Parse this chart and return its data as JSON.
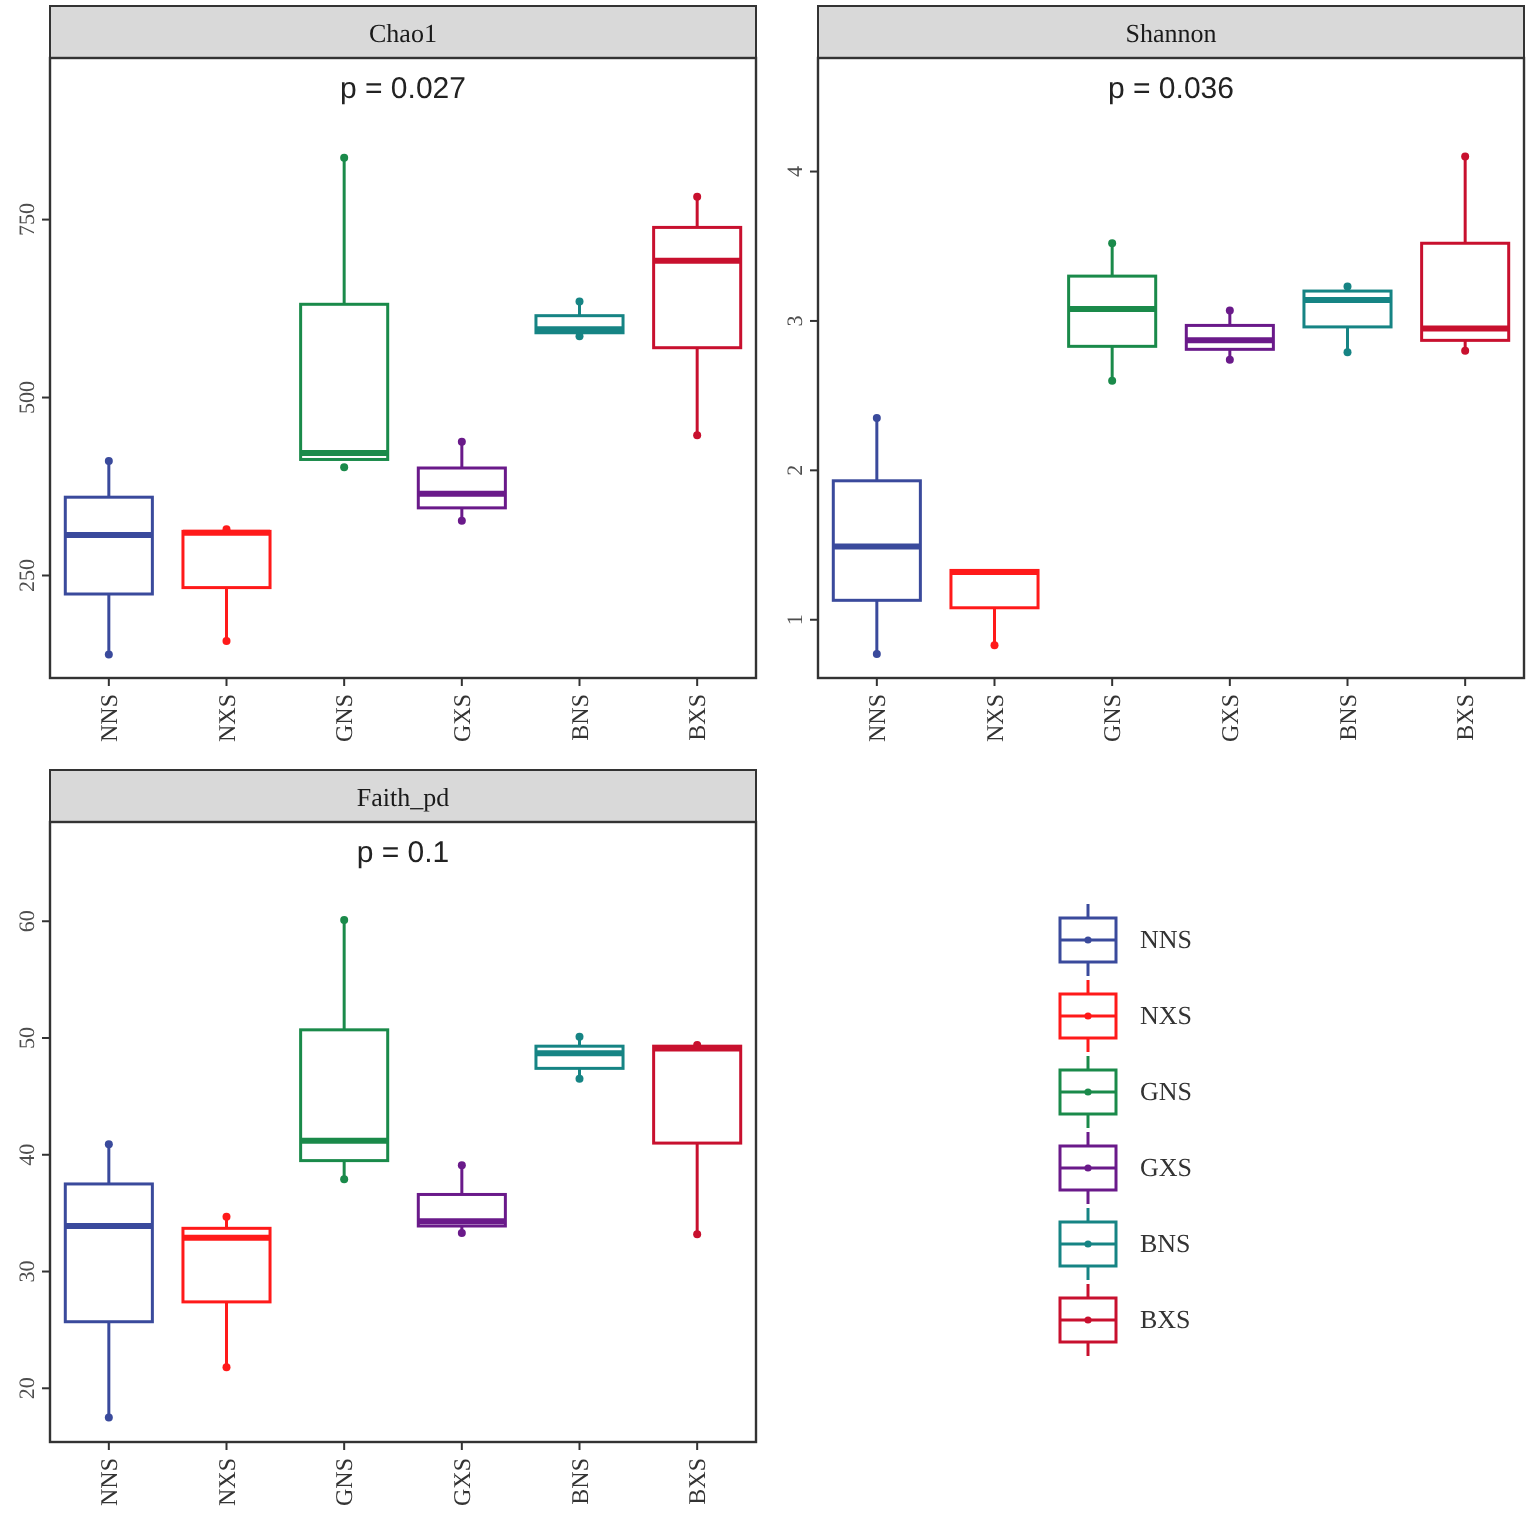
{
  "chart_data": [
    {
      "type": "box",
      "title": "Chao1",
      "annotations": [
        "p = 0.027"
      ],
      "categories": [
        "NNS",
        "NXS",
        "GNS",
        "GXS",
        "BNS",
        "BXS"
      ],
      "ylim": [
        106,
        977
      ],
      "yticks": [
        250,
        500,
        750
      ],
      "grid": false,
      "legend": false,
      "series": [
        {
          "color": "#3a4a9c",
          "boxes": [
            {
              "low": 144,
              "q1": 224,
              "median": 307,
              "q3": 360,
              "high": 411
            },
            null,
            null,
            null,
            null,
            null
          ]
        },
        {
          "color": "#ff1a1a",
          "boxes": [
            null,
            {
              "low": 158,
              "q1": 233,
              "median": 310,
              "q3": 312,
              "high": 312
            },
            null,
            null,
            null,
            null
          ]
        },
        {
          "color": "#1a8a4a",
          "boxes": [
            null,
            null,
            {
              "low": 413,
              "q1": 413,
              "median": 422,
              "q3": 631,
              "high": 837
            },
            null,
            null,
            null
          ]
        },
        {
          "color": "#6a1a8a",
          "boxes": [
            null,
            null,
            null,
            {
              "low": 329,
              "q1": 345,
              "median": 365,
              "q3": 401,
              "high": 436
            },
            null,
            null
          ]
        },
        {
          "color": "#168484",
          "boxes": [
            null,
            null,
            null,
            null,
            {
              "low": 591,
              "q1": 591,
              "median": 596,
              "q3": 615,
              "high": 635
            },
            null
          ]
        },
        {
          "color": "#c8102e",
          "boxes": [
            null,
            null,
            null,
            null,
            null,
            {
              "low": 449,
              "q1": 570,
              "median": 692,
              "q3": 739,
              "high": 785
            }
          ]
        },
        {
          "type": "scatter",
          "x": [
            "NNS",
            "NNS",
            "NXS",
            "NXS",
            "GNS",
            "GNS",
            "GXS",
            "GXS",
            "BNS",
            "BNS",
            "BXS",
            "BXS"
          ],
          "values": [
            411,
            139,
            315,
            158,
            837,
            402,
            438,
            327,
            635,
            586,
            782,
            447
          ],
          "colors": [
            "#3a4a9c",
            "#3a4a9c",
            "#ff1a1a",
            "#ff1a1a",
            "#1a8a4a",
            "#1a8a4a",
            "#6a1a8a",
            "#6a1a8a",
            "#168484",
            "#168484",
            "#c8102e",
            "#c8102e"
          ]
        }
      ]
    },
    {
      "type": "box",
      "title": "Shannon",
      "annotations": [
        "p = 0.036"
      ],
      "categories": [
        "NNS",
        "NXS",
        "GNS",
        "GXS",
        "BNS",
        "BXS"
      ],
      "ylim": [
        0.61,
        4.76
      ],
      "yticks": [
        1,
        2,
        3,
        4
      ],
      "grid": false,
      "legend": false,
      "series": [
        {
          "color": "#3a4a9c",
          "boxes": [
            {
              "low": 0.79,
              "q1": 1.13,
              "median": 1.49,
              "q3": 1.93,
              "high": 2.34
            },
            null,
            null,
            null,
            null,
            null
          ]
        },
        {
          "color": "#ff1a1a",
          "boxes": [
            null,
            {
              "low": 0.85,
              "q1": 1.08,
              "median": 1.32,
              "q3": 1.33,
              "high": 1.33
            },
            null,
            null,
            null,
            null
          ]
        },
        {
          "color": "#1a8a4a",
          "boxes": [
            null,
            null,
            {
              "low": 2.6,
              "q1": 2.83,
              "median": 3.08,
              "q3": 3.3,
              "high": 3.51
            },
            null,
            null,
            null
          ]
        },
        {
          "color": "#6a1a8a",
          "boxes": [
            null,
            null,
            null,
            {
              "low": 2.75,
              "q1": 2.81,
              "median": 2.87,
              "q3": 2.97,
              "high": 3.07
            },
            null,
            null
          ]
        },
        {
          "color": "#168484",
          "boxes": [
            null,
            null,
            null,
            null,
            {
              "low": 2.8,
              "q1": 2.96,
              "median": 3.14,
              "q3": 3.2,
              "high": 3.2
            },
            null
          ]
        },
        {
          "color": "#c8102e",
          "boxes": [
            null,
            null,
            null,
            null,
            null,
            {
              "low": 2.82,
              "q1": 2.87,
              "median": 2.95,
              "q3": 3.52,
              "high": 4.1
            }
          ]
        },
        {
          "type": "scatter",
          "x": [
            "NNS",
            "NNS",
            "NXS",
            "GNS",
            "GNS",
            "GXS",
            "GXS",
            "BNS",
            "BNS",
            "BXS",
            "BXS"
          ],
          "values": [
            2.35,
            0.77,
            0.83,
            3.52,
            2.6,
            3.07,
            2.74,
            3.23,
            2.79,
            4.1,
            2.8
          ],
          "colors": [
            "#3a4a9c",
            "#3a4a9c",
            "#ff1a1a",
            "#1a8a4a",
            "#1a8a4a",
            "#6a1a8a",
            "#6a1a8a",
            "#168484",
            "#168484",
            "#c8102e",
            "#c8102e"
          ]
        }
      ]
    },
    {
      "type": "box",
      "title": "Faith_pd",
      "annotations": [
        "p = 0.1"
      ],
      "categories": [
        "NNS",
        "NXS",
        "GNS",
        "GXS",
        "BNS",
        "BXS"
      ],
      "ylim": [
        15.4,
        68.5
      ],
      "yticks": [
        20,
        30,
        40,
        50,
        60
      ],
      "grid": false,
      "legend": "right",
      "series": [
        {
          "name": "NNS",
          "color": "#3a4a9c",
          "boxes": [
            {
              "low": 17.6,
              "q1": 25.7,
              "median": 33.9,
              "q3": 37.5,
              "high": 40.9
            },
            null,
            null,
            null,
            null,
            null
          ]
        },
        {
          "name": "NXS",
          "color": "#ff1a1a",
          "boxes": [
            null,
            {
              "low": 22.0,
              "q1": 27.4,
              "median": 32.9,
              "q3": 33.7,
              "high": 34.7
            },
            null,
            null,
            null,
            null
          ]
        },
        {
          "name": "GNS",
          "color": "#1a8a4a",
          "boxes": [
            null,
            null,
            {
              "low": 37.9,
              "q1": 39.5,
              "median": 41.2,
              "q3": 50.7,
              "high": 59.9
            },
            null,
            null,
            null
          ]
        },
        {
          "name": "GXS",
          "color": "#6a1a8a",
          "boxes": [
            null,
            null,
            null,
            {
              "low": 33.5,
              "q1": 33.9,
              "median": 34.3,
              "q3": 36.6,
              "high": 39.0
            },
            null,
            null
          ]
        },
        {
          "name": "BNS",
          "color": "#168484",
          "boxes": [
            null,
            null,
            null,
            null,
            {
              "low": 46.7,
              "q1": 47.4,
              "median": 48.7,
              "q3": 49.3,
              "high": 50.0
            },
            null
          ]
        },
        {
          "name": "BXS",
          "color": "#c8102e",
          "boxes": [
            null,
            null,
            null,
            null,
            null,
            {
              "low": 33.3,
              "q1": 41.0,
              "median": 49.1,
              "q3": 49.3,
              "high": 49.3
            }
          ]
        },
        {
          "type": "scatter",
          "x": [
            "NNS",
            "NNS",
            "NXS",
            "NXS",
            "GNS",
            "GNS",
            "GXS",
            "GXS",
            "BNS",
            "BNS",
            "BXS",
            "BXS"
          ],
          "values": [
            40.9,
            17.5,
            34.7,
            21.8,
            60.1,
            37.9,
            39.1,
            33.3,
            50.1,
            46.5,
            49.4,
            33.2
          ],
          "colors": [
            "#3a4a9c",
            "#3a4a9c",
            "#ff1a1a",
            "#ff1a1a",
            "#1a8a4a",
            "#1a8a4a",
            "#6a1a8a",
            "#6a1a8a",
            "#168484",
            "#168484",
            "#c8102e",
            "#c8102e"
          ]
        }
      ]
    }
  ]
}
